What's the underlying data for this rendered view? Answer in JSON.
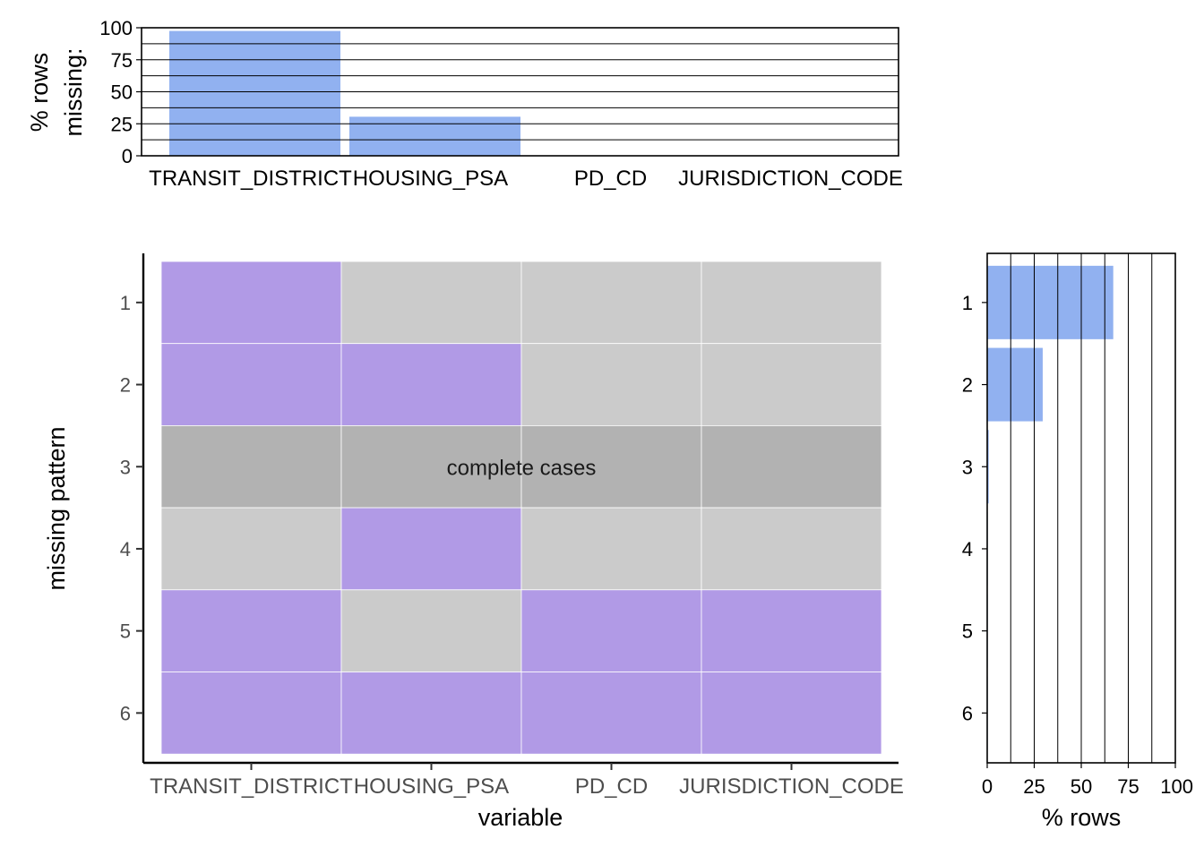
{
  "chart_data": [
    {
      "type": "bar",
      "ylabel": "% rows\nmissing:",
      "categories": [
        "TRANSIT_DISTRICT",
        "HOUSING_PSA",
        "PD_CD",
        "JURISDICTION_CODE"
      ],
      "values": [
        97.5,
        30.5,
        0.1,
        0.1
      ],
      "ylim": [
        0,
        100
      ],
      "yticks": [
        0,
        25,
        50,
        75,
        100
      ],
      "grid": true
    },
    {
      "type": "heatmap",
      "xlabel": "variable",
      "ylabel": "missing pattern",
      "x": [
        "TRANSIT_DISTRICT",
        "HOUSING_PSA",
        "PD_CD",
        "JURISDICTION_CODE"
      ],
      "y": [
        "1",
        "2",
        "3",
        "4",
        "5",
        "6"
      ],
      "values": [
        [
          1,
          0,
          0,
          0
        ],
        [
          1,
          1,
          0,
          0
        ],
        [
          0,
          0,
          0,
          0
        ],
        [
          0,
          1,
          0,
          0
        ],
        [
          1,
          0,
          1,
          1
        ],
        [
          1,
          1,
          1,
          1
        ]
      ],
      "complete_row": 3,
      "annotation": "complete cases",
      "colors": {
        "missing": "#b19ae6",
        "present": "#cbcbcb",
        "complete": "#b2b2b2"
      }
    },
    {
      "type": "bar",
      "orientation": "horizontal",
      "xlabel": "% rows",
      "categories": [
        "1",
        "2",
        "3",
        "4",
        "5",
        "6"
      ],
      "values": [
        67,
        29.5,
        0.8,
        0.05,
        0.05,
        0.02
      ],
      "xlim": [
        0,
        100
      ],
      "xticks": [
        0,
        25,
        50,
        75,
        100
      ],
      "grid": true
    }
  ],
  "colors": {
    "bar": "#91b1f0",
    "missing": "#b19ae6",
    "present": "#cbcbcb",
    "complete": "#b2b2b2"
  }
}
